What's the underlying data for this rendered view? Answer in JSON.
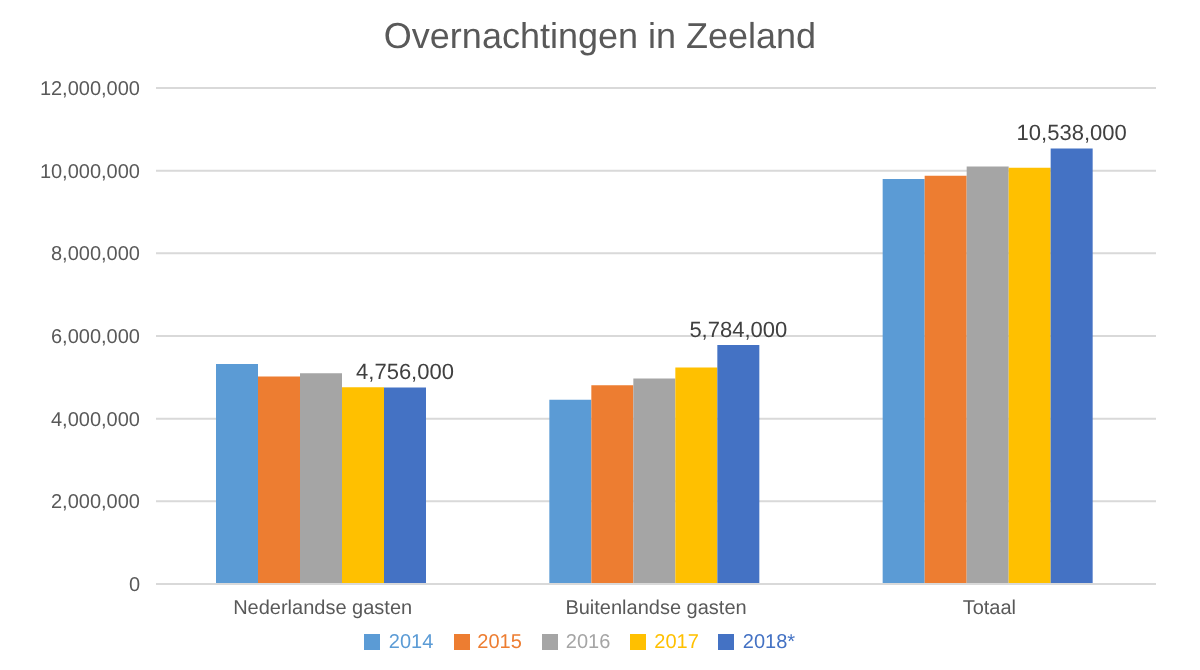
{
  "chart_data": {
    "type": "bar",
    "title": "Overnachtingen in Zeeland",
    "categories": [
      "Nederlandse gasten",
      "Buitenlandse gasten",
      "Totaal"
    ],
    "series": [
      {
        "name": "2014",
        "color": "#5b9bd5",
        "values": [
          5320000,
          4460000,
          9800000
        ]
      },
      {
        "name": "2015",
        "color": "#ed7d31",
        "values": [
          5020000,
          4810000,
          9880000
        ]
      },
      {
        "name": "2016",
        "color": "#a5a5a5",
        "values": [
          5100000,
          4970000,
          10100000
        ]
      },
      {
        "name": "2017",
        "color": "#ffc000",
        "values": [
          4760000,
          5240000,
          10070000
        ]
      },
      {
        "name": "2018*",
        "color": "#4472c4",
        "values": [
          4756000,
          5784000,
          10538000
        ],
        "value_labels": [
          "4,756,000",
          "5,784,000",
          "10,538,000"
        ]
      }
    ],
    "ylim": [
      0,
      12000000
    ],
    "yticks": [
      {
        "value": 0,
        "label": "0"
      },
      {
        "value": 2000000,
        "label": "2,000,000"
      },
      {
        "value": 4000000,
        "label": "4,000,000"
      },
      {
        "value": 6000000,
        "label": "6,000,000"
      },
      {
        "value": 8000000,
        "label": "8,000,000"
      },
      {
        "value": 10000000,
        "label": "10,000,000"
      },
      {
        "value": 12000000,
        "label": "12,000,000"
      }
    ],
    "grid": "y",
    "legend": "bottom"
  }
}
